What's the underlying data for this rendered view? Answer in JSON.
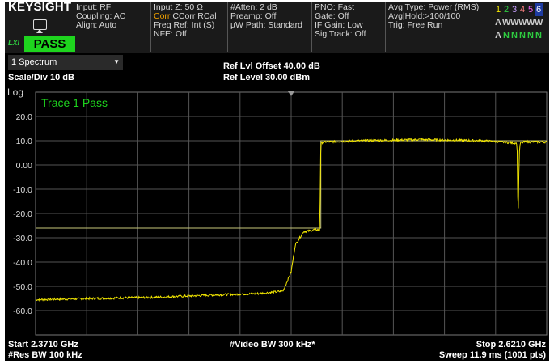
{
  "header": {
    "brand": "KEYSIGHT",
    "status": "PASS",
    "block1": [
      "Input: RF",
      "Coupling: AC",
      "Align: Auto"
    ],
    "block2_line1": "Input Z: 50 Ω",
    "block2_corr_label": "Corr",
    "block2_corr_rest": "CCorr RCal",
    "block2_line3": "Freq Ref: Int (S)",
    "block2_line4": "NFE: Off",
    "block3": [
      "#Atten: 2 dB",
      "Preamp: Off",
      "µW Path: Standard"
    ],
    "block4": [
      "PNO: Fast",
      "Gate: Off",
      "IF Gain: Low",
      "Sig Track: Off"
    ],
    "block5": [
      "Avg Type: Power (RMS)",
      "Avg|Hold:>100/100",
      "Trig: Free Run"
    ],
    "trace_numbers": [
      "1",
      "2",
      "3",
      "4",
      "5",
      "6"
    ],
    "trace_numbers_colors": [
      "#f2e600",
      "#2ecc40",
      "#c8a0ff",
      "#ff8080",
      "#ff60ff",
      "#ffffff"
    ],
    "trace_mode_row": [
      "A",
      "W",
      "W",
      "W",
      "W",
      "W"
    ],
    "trace_det_row": [
      "A",
      "N",
      "N",
      "N",
      "N",
      "N"
    ]
  },
  "subheader": {
    "window_select": "1 Spectrum",
    "scale_div": "Scale/Div 10 dB",
    "ref_offset": "Ref Lvl Offset 40.00 dB",
    "ref_level": "Ref Level 30.00 dBm"
  },
  "plot": {
    "scale_type": "Log",
    "trace_label": "Trace 1 Pass",
    "y_ticks": [
      "20.0",
      "10.0",
      "0.00",
      "-10.0",
      "-20.0",
      "-30.0",
      "-40.0",
      "-50.0",
      "-60.0"
    ],
    "y_top_dbm": 30,
    "y_bottom_dbm": -70,
    "trace_color": "#f2e600",
    "limit_color": "#c8c87a"
  },
  "chart_data": {
    "type": "line",
    "x_unit": "GHz",
    "y_unit": "dBm",
    "xlim": [
      2.371,
      2.621
    ],
    "ylim": [
      -70,
      30
    ],
    "series": [
      {
        "name": "Trace 1",
        "x": [
          2.371,
          2.4,
          2.43,
          2.46,
          2.48,
          2.492,
          2.496,
          2.498,
          2.502,
          2.506,
          2.508,
          2.51,
          2.5105,
          2.512,
          2.53,
          2.56,
          2.59,
          2.6065,
          2.607,
          2.6075,
          2.608,
          2.61,
          2.621
        ],
        "values": [
          -55.5,
          -55.0,
          -54.5,
          -53.5,
          -53.0,
          -52.0,
          -44.0,
          -33.0,
          -27.5,
          -27.0,
          -26.5,
          -27.0,
          9.0,
          9.5,
          10.0,
          10.5,
          10.0,
          9.0,
          -24.0,
          3.0,
          9.0,
          9.5,
          9.5
        ]
      }
    ],
    "limit_lines": [
      {
        "x": [
          2.371,
          2.5105,
          2.5105,
          2.621
        ],
        "values": [
          -26.0,
          -26.0,
          10.0,
          10.0
        ]
      }
    ]
  },
  "footer": {
    "start": "Start 2.3710 GHz",
    "res_bw": "#Res BW 100 kHz",
    "video_bw": "#Video BW 300 kHz*",
    "stop": "Stop 2.6210 GHz",
    "sweep": "Sweep 11.9 ms (1001 pts)"
  }
}
